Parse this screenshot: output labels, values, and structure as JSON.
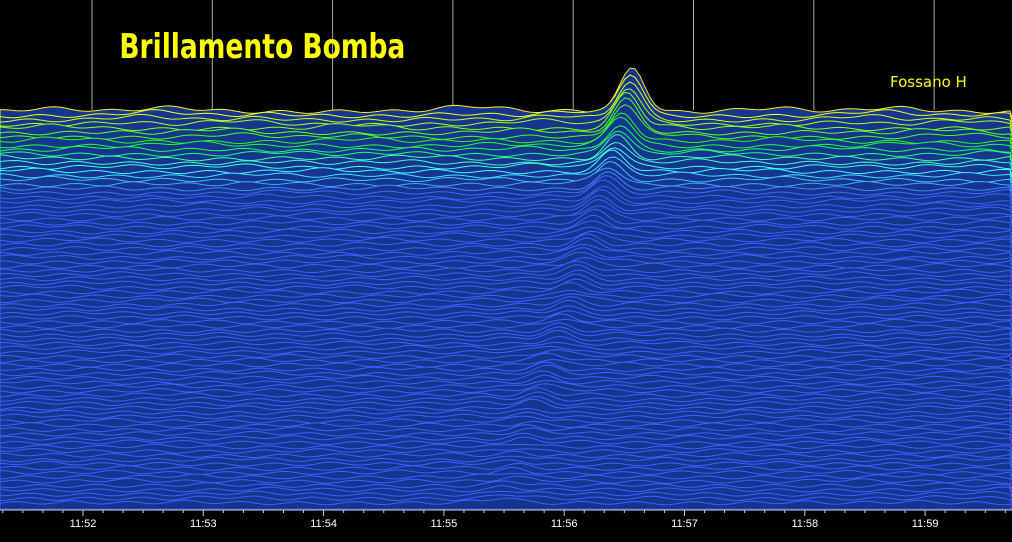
{
  "chart_data": {
    "type": "waterfall",
    "title": "Brillamento Bomba",
    "annotation": "Fossano H",
    "categories": [
      "11:52",
      "11:53",
      "11:54",
      "11:55",
      "11:56",
      "11:57",
      "11:58",
      "11:59"
    ]
  }
}
